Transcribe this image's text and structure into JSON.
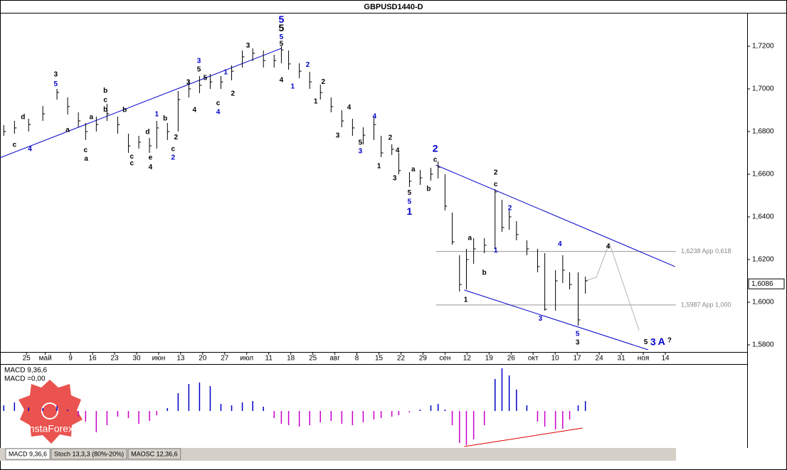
{
  "chart_data": {
    "type": "ohlc",
    "title": "GBPUSD1440-D",
    "xlim": [
      -8.4,
      229
    ],
    "ylim": [
      1.57667,
      1.73567
    ],
    "xticks": [
      {
        "value": 0,
        "label": "25"
      },
      {
        "value": 6,
        "label": "май"
      },
      {
        "value": 14,
        "label": "9"
      },
      {
        "value": 21,
        "label": "16"
      },
      {
        "value": 28,
        "label": "23"
      },
      {
        "value": 35,
        "label": "30"
      },
      {
        "value": 42,
        "label": "июн"
      },
      {
        "value": 49,
        "label": "13"
      },
      {
        "value": 56,
        "label": "20"
      },
      {
        "value": 63,
        "label": "27"
      },
      {
        "value": 70,
        "label": "июл"
      },
      {
        "value": 77,
        "label": "11"
      },
      {
        "value": 84,
        "label": "18"
      },
      {
        "value": 91,
        "label": "25"
      },
      {
        "value": 98,
        "label": "авг"
      },
      {
        "value": 105,
        "label": "8"
      },
      {
        "value": 112,
        "label": "15"
      },
      {
        "value": 119,
        "label": "22"
      },
      {
        "value": 126,
        "label": "29"
      },
      {
        "value": 133,
        "label": "сен"
      },
      {
        "value": 140,
        "label": "12"
      },
      {
        "value": 147,
        "label": "19"
      },
      {
        "value": 154,
        "label": "26"
      },
      {
        "value": 161,
        "label": "окт"
      },
      {
        "value": 168,
        "label": "10"
      },
      {
        "value": 175,
        "label": "17"
      },
      {
        "value": 182,
        "label": "24"
      },
      {
        "value": 189,
        "label": "31"
      },
      {
        "value": 196,
        "label": "ноя"
      },
      {
        "value": 203,
        "label": "14"
      }
    ],
    "yticks": [
      {
        "value": 1.72,
        "label": "1,7200"
      },
      {
        "value": 1.7,
        "label": "1,7000"
      },
      {
        "value": 1.68,
        "label": "1,6800"
      },
      {
        "value": 1.66,
        "label": "1,6600"
      },
      {
        "value": 1.64,
        "label": "1,6400"
      },
      {
        "value": 1.62,
        "label": "1,6200"
      },
      {
        "value": 1.6,
        "label": "1,6000"
      },
      {
        "value": 1.58,
        "label": "1,5800"
      }
    ],
    "color": "#000000",
    "x": [
      -7.2,
      -3.8,
      0.7,
      5.2,
      9.7,
      13.1,
      16.5,
      18.8,
      22.2,
      25.6,
      29.0,
      32.4,
      35.7,
      39.1,
      41.4,
      44.8,
      48.2,
      51.6,
      55.0,
      58.4,
      61.8,
      65.2,
      68.6,
      71.9,
      75.3,
      78.7,
      81.0,
      83.3,
      86.7,
      90.0,
      93.4,
      96.8,
      100.2,
      103.6,
      107.0,
      110.4,
      112.7,
      116.1,
      118.3,
      121.7,
      125.1,
      128.5,
      130.8,
      133.0,
      135.3,
      137.6,
      139.8,
      142.1,
      145.5,
      148.9,
      151.1,
      153.4,
      155.7,
      159.0,
      162.4,
      164.7,
      168.1,
      170.4,
      172.6,
      175.3,
      177.6
    ],
    "close": [
      1.68,
      1.6817,
      1.6833,
      1.6883,
      1.6983,
      1.6917,
      1.685,
      1.68,
      1.6833,
      1.6883,
      1.6833,
      1.6733,
      1.675,
      1.6733,
      1.6817,
      1.68,
      1.695,
      1.7,
      1.7017,
      1.7033,
      1.7033,
      1.7083,
      1.715,
      1.7167,
      1.7133,
      1.7133,
      1.7183,
      1.7117,
      1.7083,
      1.7033,
      1.6983,
      1.6917,
      1.685,
      1.6817,
      1.6783,
      1.6833,
      1.67,
      1.6717,
      1.6617,
      1.6567,
      1.6583,
      1.66,
      1.6633,
      1.645,
      1.6283,
      1.6083,
      1.62,
      1.625,
      1.6267,
      1.6517,
      1.635,
      1.64,
      1.6317,
      1.625,
      1.6167,
      1.5967,
      1.61,
      1.615,
      1.6083,
      1.5917,
      1.61
    ],
    "high": [
      1.683,
      1.685,
      1.686,
      1.692,
      1.7,
      1.696,
      1.689,
      1.684,
      1.687,
      1.693,
      1.687,
      1.679,
      1.678,
      1.677,
      1.685,
      1.684,
      1.699,
      1.704,
      1.706,
      1.707,
      1.706,
      1.711,
      1.718,
      1.719,
      1.718,
      1.716,
      1.72,
      1.718,
      1.712,
      1.708,
      1.702,
      1.696,
      1.69,
      1.686,
      1.682,
      1.687,
      1.678,
      1.674,
      1.67,
      1.661,
      1.662,
      1.663,
      1.666,
      1.66,
      1.642,
      1.622,
      1.625,
      1.63,
      1.63,
      1.653,
      1.648,
      1.643,
      1.638,
      1.629,
      1.625,
      1.623,
      1.615,
      1.622,
      1.614,
      1.614,
      1.612
    ],
    "low": [
      1.678,
      1.679,
      1.68,
      1.685,
      1.695,
      1.688,
      1.682,
      1.676,
      1.68,
      1.685,
      1.679,
      1.67,
      1.672,
      1.67,
      1.672,
      1.676,
      1.68,
      1.696,
      1.698,
      1.7,
      1.7,
      1.704,
      1.71,
      1.713,
      1.71,
      1.71,
      1.712,
      1.709,
      1.705,
      1.7,
      1.695,
      1.689,
      1.682,
      1.678,
      1.674,
      1.676,
      1.668,
      1.669,
      1.66,
      1.654,
      1.655,
      1.657,
      1.658,
      1.643,
      1.627,
      1.605,
      1.606,
      1.618,
      1.623,
      1.625,
      1.633,
      1.634,
      1.629,
      1.622,
      1.614,
      1.596,
      1.596,
      1.609,
      1.606,
      1.589,
      1.604
    ],
    "lines": [
      {
        "color": "#0000c8",
        "x": [
          -8.4,
          81.0
        ],
        "y": [
          1.6677,
          1.719
        ]
      },
      {
        "color": "#0000c8",
        "x": [
          130.1,
          206.1
        ],
        "y": [
          1.6643,
          1.6167
        ]
      },
      {
        "color": "#0000c8",
        "x": [
          139.1,
          197.5
        ],
        "y": [
          1.6057,
          1.5777
        ]
      },
      {
        "color": "#b4b4b4",
        "x": [
          177.6,
          181.1,
          185.2,
          194.7
        ],
        "y": [
          1.61,
          1.6117,
          1.6277,
          1.5867
        ]
      }
    ],
    "levels": [
      {
        "value": 1.6238,
        "label": "1,6238 App 0,618",
        "from": 130.1
      },
      {
        "value": 1.5987,
        "label": "1,5987 App 1,000",
        "from": 130.1
      }
    ],
    "last_price": {
      "value": 1.6086,
      "label": "1,6086"
    },
    "annotations": [
      {
        "text": "3",
        "x": 9.3,
        "y": 1.7067,
        "color": "#000000"
      },
      {
        "text": "5",
        "x": 9.3,
        "y": 1.7023,
        "color": "#0000c8"
      },
      {
        "text": "c",
        "x": -3.8,
        "y": 1.6737,
        "color": "#000000"
      },
      {
        "text": "4",
        "x": 1.1,
        "y": 1.6717,
        "color": "#0000c8"
      },
      {
        "text": "d",
        "x": -1.1,
        "y": 1.6867,
        "color": "#000000"
      },
      {
        "text": "a",
        "x": 13.1,
        "y": 1.6807,
        "color": "#000000"
      },
      {
        "text": "c",
        "x": 18.8,
        "y": 1.6713,
        "color": "#000000"
      },
      {
        "text": "a",
        "x": 19.0,
        "y": 1.6673,
        "color": "#000000"
      },
      {
        "text": "a",
        "x": 20.6,
        "y": 1.6867,
        "color": "#000000"
      },
      {
        "text": "b",
        "x": 25.1,
        "y": 1.699,
        "color": "#000000"
      },
      {
        "text": "c",
        "x": 25.1,
        "y": 1.6947,
        "color": "#000000"
      },
      {
        "text": "b",
        "x": 25.1,
        "y": 1.6903,
        "color": "#000000"
      },
      {
        "text": "b",
        "x": 31.2,
        "y": 1.69,
        "color": "#000000"
      },
      {
        "text": "c",
        "x": 33.5,
        "y": 1.6683,
        "color": "#000000"
      },
      {
        "text": "c",
        "x": 33.5,
        "y": 1.665,
        "color": "#000000"
      },
      {
        "text": "d",
        "x": 38.5,
        "y": 1.6797,
        "color": "#000000"
      },
      {
        "text": "e",
        "x": 39.4,
        "y": 1.6677,
        "color": "#000000"
      },
      {
        "text": "4",
        "x": 39.4,
        "y": 1.6633,
        "color": "#000000"
      },
      {
        "text": "1",
        "x": 41.4,
        "y": 1.688,
        "color": "#0000c8"
      },
      {
        "text": "b",
        "x": 44.1,
        "y": 1.686,
        "color": "#000000"
      },
      {
        "text": "2",
        "x": 47.5,
        "y": 1.6773,
        "color": "#000000"
      },
      {
        "text": "c",
        "x": 46.6,
        "y": 1.6717,
        "color": "#000000"
      },
      {
        "text": "2",
        "x": 46.6,
        "y": 1.6677,
        "color": "#0000c8"
      },
      {
        "text": "3",
        "x": 54.8,
        "y": 1.713,
        "color": "#0000c8"
      },
      {
        "text": "5",
        "x": 54.8,
        "y": 1.709,
        "color": "#000000"
      },
      {
        "text": "3",
        "x": 51.4,
        "y": 1.703,
        "color": "#000000"
      },
      {
        "text": "5",
        "x": 56.8,
        "y": 1.705,
        "color": "#000000"
      },
      {
        "text": "4",
        "x": 53.4,
        "y": 1.69,
        "color": "#000000"
      },
      {
        "text": "c",
        "x": 60.9,
        "y": 1.6933,
        "color": "#000000"
      },
      {
        "text": "4",
        "x": 60.9,
        "y": 1.689,
        "color": "#0000c8"
      },
      {
        "text": "1",
        "x": 63.3,
        "y": 1.7077,
        "color": "#0000c8"
      },
      {
        "text": "2",
        "x": 65.6,
        "y": 1.6977,
        "color": "#000000"
      },
      {
        "text": "3",
        "x": 70.4,
        "y": 1.7203,
        "color": "#000000"
      },
      {
        "text": "5",
        "x": 81.0,
        "y": 1.7323,
        "color": "#0000c8",
        "large": true
      },
      {
        "text": "5",
        "x": 81.0,
        "y": 1.7283,
        "color": "#000000",
        "large": true
      },
      {
        "text": "5",
        "x": 81.0,
        "y": 1.7243,
        "color": "#0000c8"
      },
      {
        "text": "5",
        "x": 81.0,
        "y": 1.721,
        "color": "#000000"
      },
      {
        "text": "4",
        "x": 81.0,
        "y": 1.704,
        "color": "#000000"
      },
      {
        "text": "1",
        "x": 84.6,
        "y": 1.701,
        "color": "#0000c8"
      },
      {
        "text": "2",
        "x": 89.4,
        "y": 1.7113,
        "color": "#0000c8"
      },
      {
        "text": "2",
        "x": 94.3,
        "y": 1.7033,
        "color": "#000000"
      },
      {
        "text": "1",
        "x": 91.9,
        "y": 1.694,
        "color": "#000000"
      },
      {
        "text": "3",
        "x": 98.9,
        "y": 1.678,
        "color": "#000000"
      },
      {
        "text": "4",
        "x": 102.5,
        "y": 1.6913,
        "color": "#000000"
      },
      {
        "text": "5",
        "x": 106.1,
        "y": 1.6747,
        "color": "#000000"
      },
      {
        "text": "3",
        "x": 106.1,
        "y": 1.6707,
        "color": "#0000c8"
      },
      {
        "text": "4",
        "x": 110.6,
        "y": 1.687,
        "color": "#0000c8"
      },
      {
        "text": "2",
        "x": 115.6,
        "y": 1.677,
        "color": "#000000"
      },
      {
        "text": "4",
        "x": 117.9,
        "y": 1.671,
        "color": "#000000"
      },
      {
        "text": "1",
        "x": 112.0,
        "y": 1.6637,
        "color": "#000000"
      },
      {
        "text": "3",
        "x": 117.0,
        "y": 1.658,
        "color": "#000000"
      },
      {
        "text": "5",
        "x": 121.7,
        "y": 1.6513,
        "color": "#000000"
      },
      {
        "text": "5",
        "x": 121.7,
        "y": 1.647,
        "color": "#0000c8"
      },
      {
        "text": "1",
        "x": 121.7,
        "y": 1.6423,
        "color": "#0000c8",
        "large": true
      },
      {
        "text": "a",
        "x": 122.9,
        "y": 1.6623,
        "color": "#000000"
      },
      {
        "text": "b",
        "x": 127.8,
        "y": 1.653,
        "color": "#000000"
      },
      {
        "text": "2",
        "x": 129.9,
        "y": 1.6717,
        "color": "#0000c8",
        "large": true
      },
      {
        "text": "c",
        "x": 129.9,
        "y": 1.6667,
        "color": "#000000"
      },
      {
        "text": "2",
        "x": 149.1,
        "y": 1.6607,
        "color": "#000000"
      },
      {
        "text": "c",
        "x": 149.1,
        "y": 1.6553,
        "color": "#000000"
      },
      {
        "text": "2",
        "x": 153.6,
        "y": 1.644,
        "color": "#0000c8"
      },
      {
        "text": "a",
        "x": 140.9,
        "y": 1.63,
        "color": "#000000"
      },
      {
        "text": "1",
        "x": 149.1,
        "y": 1.6243,
        "color": "#0000c8"
      },
      {
        "text": "b",
        "x": 145.5,
        "y": 1.6137,
        "color": "#000000"
      },
      {
        "text": "1",
        "x": 139.6,
        "y": 1.601,
        "color": "#000000"
      },
      {
        "text": "4",
        "x": 169.5,
        "y": 1.6273,
        "color": "#0000c8"
      },
      {
        "text": "3",
        "x": 163.3,
        "y": 1.5923,
        "color": "#0000c8"
      },
      {
        "text": "5",
        "x": 175.1,
        "y": 1.585,
        "color": "#0000c8"
      },
      {
        "text": "3",
        "x": 175.1,
        "y": 1.581,
        "color": "#000000"
      },
      {
        "text": "4",
        "x": 184.8,
        "y": 1.626,
        "color": "#000000"
      },
      {
        "text": "5",
        "x": 196.8,
        "y": 1.5813,
        "color": "#000000"
      },
      {
        "text": "3",
        "x": 199.1,
        "y": 1.581,
        "color": "#0000c8",
        "large": true
      },
      {
        "text": "A",
        "x": 201.8,
        "y": 1.5813,
        "color": "#0000c8",
        "large": true
      },
      {
        "text": "?",
        "x": 204.3,
        "y": 1.582,
        "color": "#000000"
      }
    ],
    "watermark": "InstaForex",
    "macd": {
      "name": "MACD 9,36,6",
      "value_label": "MACD =0,00",
      "ylim": [
        -0.0052,
        0.0066
      ],
      "up_color": "#0000c8",
      "down_color": "#c800c8",
      "values": [
        0.0008,
        0.0012,
        0.0005,
        0.0004,
        0.0007,
        0.0002,
        -0.0008,
        -0.0015,
        -0.003,
        -0.002,
        -0.0008,
        -0.001,
        -0.0018,
        -0.0014,
        -0.0006,
        0.0004,
        0.0025,
        0.0038,
        0.004,
        0.0035,
        0.001,
        0.0008,
        0.0012,
        0.0014,
        0.0006,
        -0.001,
        -0.0018,
        -0.002,
        -0.0022,
        -0.002,
        -0.0016,
        -0.0014,
        -0.0018,
        -0.002,
        -0.0016,
        -0.0012,
        -0.001,
        -0.0008,
        -0.0006,
        -0.0002,
        0.0002,
        0.0008,
        0.001,
        0.0002,
        -0.002,
        -0.0045,
        -0.0048,
        -0.004,
        -0.002,
        0.0045,
        0.006,
        0.005,
        0.003,
        0.0008,
        -0.0015,
        -0.0022,
        -0.0026,
        -0.0025,
        -0.0012,
        0.0008,
        0.0014
      ],
      "line": {
        "color": "#e00000",
        "x": [
          139.1,
          176.7
        ],
        "y": [
          -0.005,
          -0.0024
        ]
      }
    },
    "tabs": [
      "MACD 9,36,6",
      "Stoch 13,3,3 (80%-20%)",
      "MAOSC 12,36,6"
    ]
  }
}
